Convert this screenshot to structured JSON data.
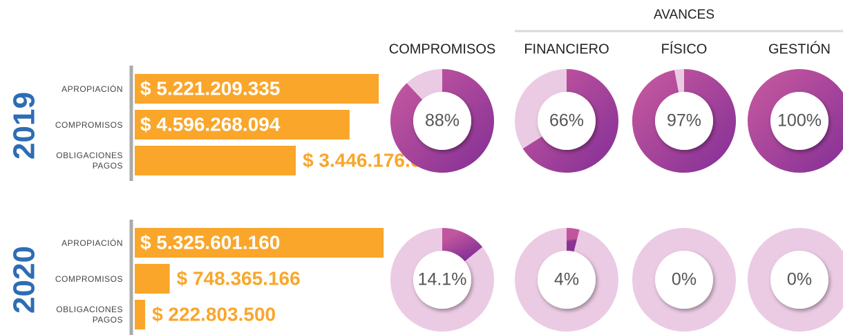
{
  "header": {
    "group": "AVANCES",
    "columns": [
      "COMPROMISOS",
      "FINANCIERO",
      "FÍSICO",
      "GESTIÓN"
    ]
  },
  "chart_data": [
    {
      "type": "bar",
      "title": "2019",
      "categories": [
        "APROPIACIÓN",
        "COMPROMISOS",
        "OBLIGACIONES PAGOS"
      ],
      "values": [
        5221209335,
        4596268094,
        3446176658
      ],
      "value_labels": [
        "$ 5.221.209.335",
        "$ 4.596.268.094",
        "$ 3.446.176.658"
      ],
      "xlim": [
        0,
        5500000000
      ],
      "color": "#f9a62b"
    },
    {
      "type": "donut",
      "values": [
        88,
        66,
        97,
        100
      ],
      "value_labels": [
        "88%",
        "66%",
        "97%",
        "100%"
      ],
      "color": "#a23e9c"
    },
    {
      "type": "bar",
      "title": "2020",
      "categories": [
        "APROPIACIÓN",
        "COMPROMISOS",
        "OBLIGACIONES PAGOS"
      ],
      "values": [
        5325601160,
        748365166,
        222803500
      ],
      "value_labels": [
        "$ 5.325.601.160",
        "$ 748.365.166",
        "$ 222.803.500"
      ],
      "xlim": [
        0,
        5500000000
      ],
      "color": "#f9a62b"
    },
    {
      "type": "donut",
      "values": [
        14.1,
        4,
        0,
        0
      ],
      "value_labels": [
        "14.1%",
        "4%",
        "0%",
        "0%"
      ],
      "color": "#a23e9c"
    }
  ]
}
